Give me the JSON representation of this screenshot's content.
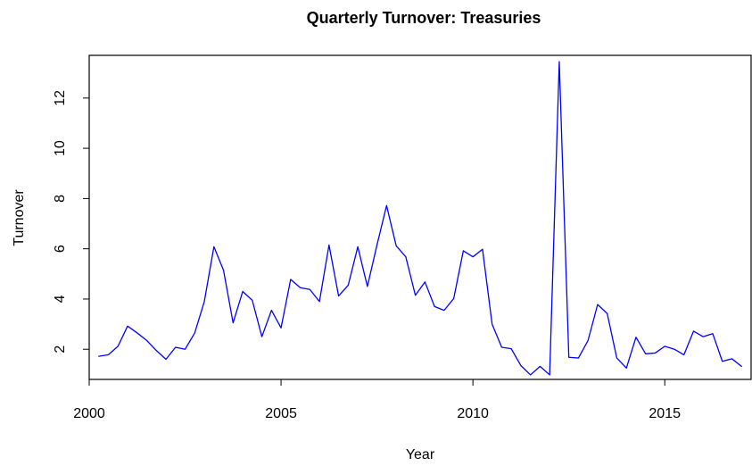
{
  "chart_data": {
    "type": "line",
    "title": "Quarterly Turnover: Treasuries",
    "xlabel": "Year",
    "ylabel": "Turnover",
    "xlim": [
      2000,
      2017.25
    ],
    "ylim": [
      0.8,
      13.7
    ],
    "x_ticks": [
      2000,
      2005,
      2010,
      2015
    ],
    "y_ticks": [
      2,
      4,
      6,
      8,
      10,
      12
    ],
    "grid": false,
    "legend": "none",
    "color": "#0000ff",
    "x": [
      2000.25,
      2000.5,
      2000.75,
      2001.0,
      2001.25,
      2001.5,
      2001.75,
      2002.0,
      2002.25,
      2002.5,
      2002.75,
      2003.0,
      2003.25,
      2003.5,
      2003.75,
      2004.0,
      2004.25,
      2004.5,
      2004.75,
      2005.0,
      2005.25,
      2005.5,
      2005.75,
      2006.0,
      2006.25,
      2006.5,
      2006.75,
      2007.0,
      2007.25,
      2007.5,
      2007.75,
      2008.0,
      2008.25,
      2008.5,
      2008.75,
      2009.0,
      2009.25,
      2009.5,
      2009.75,
      2010.0,
      2010.25,
      2010.5,
      2010.75,
      2011.0,
      2011.25,
      2011.5,
      2011.75,
      2012.0,
      2012.25,
      2012.5,
      2012.75,
      2013.0,
      2013.25,
      2013.5,
      2013.75,
      2014.0,
      2014.25,
      2014.5,
      2014.75,
      2015.0,
      2015.25,
      2015.5,
      2015.75,
      2016.0,
      2016.25,
      2016.5,
      2016.75,
      2017.0
    ],
    "values": [
      1.72,
      1.78,
      2.12,
      2.92,
      2.65,
      2.35,
      1.95,
      1.6,
      2.08,
      2.0,
      2.65,
      3.9,
      6.08,
      5.15,
      3.05,
      4.3,
      3.95,
      2.5,
      3.55,
      2.85,
      4.78,
      4.45,
      4.38,
      3.9,
      6.15,
      4.12,
      4.55,
      6.08,
      4.5,
      6.15,
      7.72,
      6.12,
      5.68,
      4.15,
      4.68,
      3.7,
      3.55,
      4.02,
      5.92,
      5.68,
      5.98,
      3.0,
      2.08,
      2.02,
      1.35,
      0.98,
      1.32,
      0.98,
      13.45,
      1.68,
      1.65,
      2.35,
      3.78,
      3.42,
      1.65,
      1.25,
      2.48,
      1.82,
      1.85,
      2.12,
      2.0,
      1.78,
      2.72,
      2.5,
      2.62,
      1.52,
      1.62,
      1.32
    ]
  }
}
